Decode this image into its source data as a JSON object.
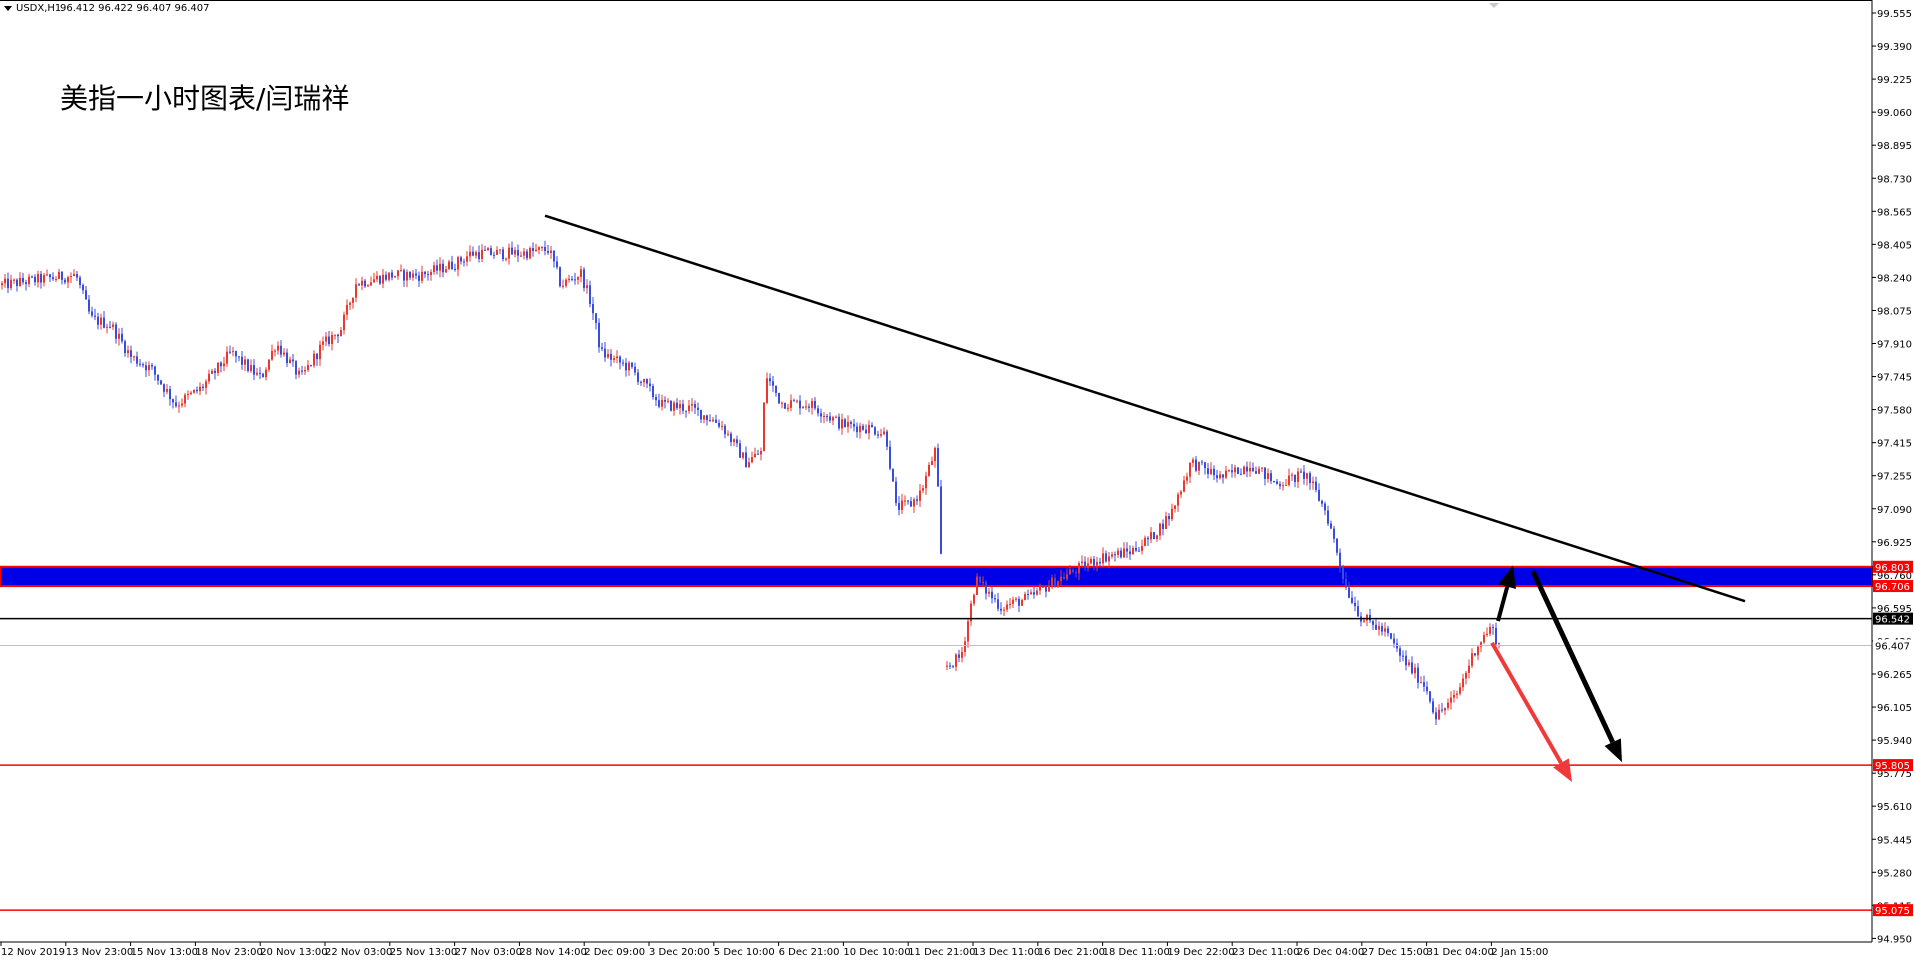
{
  "header": {
    "symbol": "USDX,H1",
    "ohlc": "96.412 96.422 96.407 96.407"
  },
  "title": "美指一小时图表/闫瑞祥",
  "colors": {
    "background": "#ffffff",
    "bull_candle": "#e8382f",
    "bear_candle": "#3a4be0",
    "zone_fill": "#0000e6",
    "zone_border": "#ff0000",
    "level_red": "#ff0000",
    "trendline": "#000000",
    "arrow_red": "#f03a3a",
    "arrow_black": "#000000"
  },
  "chart_data": {
    "type": "candlestick",
    "y_axis": {
      "range": [
        94.95,
        99.63
      ],
      "ticks": [
        "99.555",
        "99.390",
        "99.225",
        "99.060",
        "98.895",
        "98.730",
        "98.565",
        "98.405",
        "98.240",
        "98.075",
        "97.910",
        "97.745",
        "97.580",
        "97.415",
        "97.255",
        "97.090",
        "96.925",
        "96.760",
        "96.595",
        "96.430",
        "96.265",
        "96.105",
        "95.940",
        "95.775",
        "95.610",
        "95.445",
        "95.280",
        "95.115",
        "94.950"
      ]
    },
    "x_axis": {
      "ticks": [
        "12 Nov 2019",
        "13 Nov 23:00",
        "15 Nov 13:00",
        "18 Nov 23:00",
        "20 Nov 13:00",
        "22 Nov 03:00",
        "25 Nov 13:00",
        "27 Nov 03:00",
        "28 Nov 14:00",
        "2 Dec 09:00",
        "3 Dec 20:00",
        "5 Dec 10:00",
        "6 Dec 21:00",
        "10 Dec 10:00",
        "11 Dec 21:00",
        "13 Dec 11:00",
        "16 Dec 21:00",
        "18 Dec 11:00",
        "19 Dec 22:00",
        "23 Dec 11:00",
        "26 Dec 04:00",
        "27 Dec 15:00",
        "31 Dec 04:00",
        "2 Jan 15:00"
      ]
    },
    "price_path": [
      [
        0,
        98.22
      ],
      [
        40,
        98.25
      ],
      [
        75,
        98.27
      ],
      [
        90,
        98.05
      ],
      [
        110,
        98.02
      ],
      [
        130,
        97.86
      ],
      [
        150,
        97.8
      ],
      [
        175,
        97.62
      ],
      [
        200,
        97.7
      ],
      [
        230,
        97.88
      ],
      [
        260,
        97.75
      ],
      [
        275,
        97.93
      ],
      [
        300,
        97.75
      ],
      [
        320,
        97.91
      ],
      [
        340,
        98.0
      ],
      [
        355,
        98.23
      ],
      [
        390,
        98.27
      ],
      [
        420,
        98.27
      ],
      [
        455,
        98.33
      ],
      [
        470,
        98.38
      ],
      [
        490,
        98.38
      ],
      [
        520,
        98.38
      ],
      [
        548,
        98.4
      ],
      [
        560,
        98.22
      ],
      [
        580,
        98.28
      ],
      [
        590,
        98.13
      ],
      [
        600,
        97.88
      ],
      [
        630,
        97.8
      ],
      [
        660,
        97.62
      ],
      [
        690,
        97.6
      ],
      [
        720,
        97.52
      ],
      [
        745,
        97.33
      ],
      [
        760,
        97.38
      ],
      [
        765,
        97.77
      ],
      [
        780,
        97.63
      ],
      [
        810,
        97.62
      ],
      [
        840,
        97.52
      ],
      [
        870,
        97.5
      ],
      [
        885,
        97.47
      ],
      [
        895,
        97.1
      ],
      [
        910,
        97.12
      ],
      [
        920,
        97.18
      ],
      [
        935,
        97.4
      ],
      [
        945,
        96.3
      ],
      [
        960,
        96.35
      ],
      [
        975,
        96.74
      ],
      [
        1000,
        96.6
      ],
      [
        1030,
        96.65
      ],
      [
        1050,
        96.72
      ],
      [
        1080,
        96.8
      ],
      [
        1100,
        96.85
      ],
      [
        1130,
        96.88
      ],
      [
        1150,
        96.95
      ],
      [
        1170,
        97.07
      ],
      [
        1190,
        97.33
      ],
      [
        1220,
        97.25
      ],
      [
        1250,
        97.32
      ],
      [
        1275,
        97.22
      ],
      [
        1305,
        97.27
      ],
      [
        1325,
        97.08
      ],
      [
        1335,
        96.9
      ],
      [
        1345,
        96.7
      ],
      [
        1360,
        96.55
      ],
      [
        1385,
        96.47
      ],
      [
        1400,
        96.35
      ],
      [
        1425,
        96.2
      ],
      [
        1435,
        96.05
      ],
      [
        1455,
        96.15
      ],
      [
        1475,
        96.4
      ],
      [
        1490,
        96.5
      ],
      [
        1498,
        96.41
      ]
    ],
    "levels": [
      {
        "price": 96.542,
        "label": "96.542",
        "color": "#000000"
      },
      {
        "price": 96.407,
        "label": "96.407",
        "color": "#c0c0c0"
      },
      {
        "price": 95.805,
        "label": "95.805",
        "color": "#ff0000"
      },
      {
        "price": 95.075,
        "label": "95.075",
        "color": "#ff0000"
      }
    ],
    "zone": {
      "top": 96.803,
      "bottom": 96.706,
      "labels": [
        "96.803",
        "96.706"
      ]
    },
    "trendline": {
      "from": [
        98.57
      ],
      "to": [
        96.63
      ]
    },
    "arrows": [
      {
        "name": "up-arrow",
        "color": "#000000",
        "from": 96.53,
        "to": 96.81
      },
      {
        "name": "down-arrow-black",
        "color": "#000000",
        "from": 96.78,
        "to": 95.82
      },
      {
        "name": "down-arrow-red",
        "color": "#f03a3a",
        "from": 96.42,
        "to": 95.72
      }
    ]
  }
}
